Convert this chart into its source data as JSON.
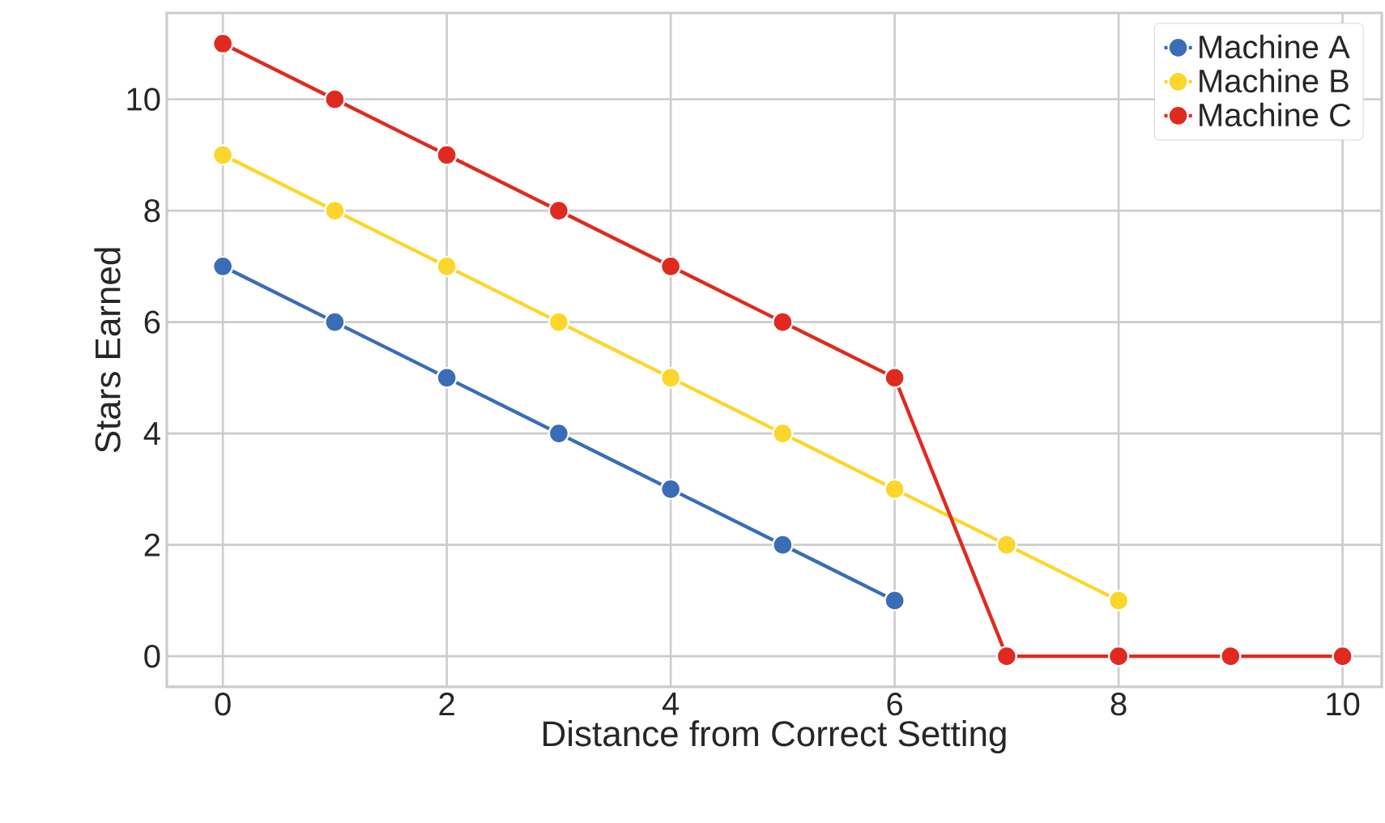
{
  "chart_data": {
    "type": "line",
    "xlabel": "Distance from Correct Setting",
    "ylabel": "Stars Earned",
    "series": [
      {
        "name": "Machine A",
        "color": "#3a6db5",
        "x": [
          0,
          1,
          2,
          3,
          4,
          5,
          6
        ],
        "values": [
          7,
          6,
          5,
          4,
          3,
          2,
          1
        ]
      },
      {
        "name": "Machine B",
        "color": "#fcd62b",
        "x": [
          0,
          1,
          2,
          3,
          4,
          5,
          6,
          7,
          8
        ],
        "values": [
          9,
          8,
          7,
          6,
          5,
          4,
          3,
          2,
          1
        ]
      },
      {
        "name": "Machine C",
        "color": "#e02a1f",
        "x": [
          0,
          1,
          2,
          3,
          4,
          5,
          6,
          7,
          8,
          9,
          10
        ],
        "values": [
          11,
          10,
          9,
          8,
          7,
          6,
          5,
          0,
          0,
          0,
          0
        ]
      }
    ],
    "xlim": [
      -0.5,
      10.35
    ],
    "ylim": [
      -0.55,
      11.55
    ],
    "xticks": [
      0,
      2,
      4,
      6,
      8,
      10
    ],
    "yticks": [
      0,
      2,
      4,
      6,
      8,
      10
    ],
    "grid": true,
    "legend": "top right",
    "marker": "circle",
    "line_style": "solid"
  }
}
